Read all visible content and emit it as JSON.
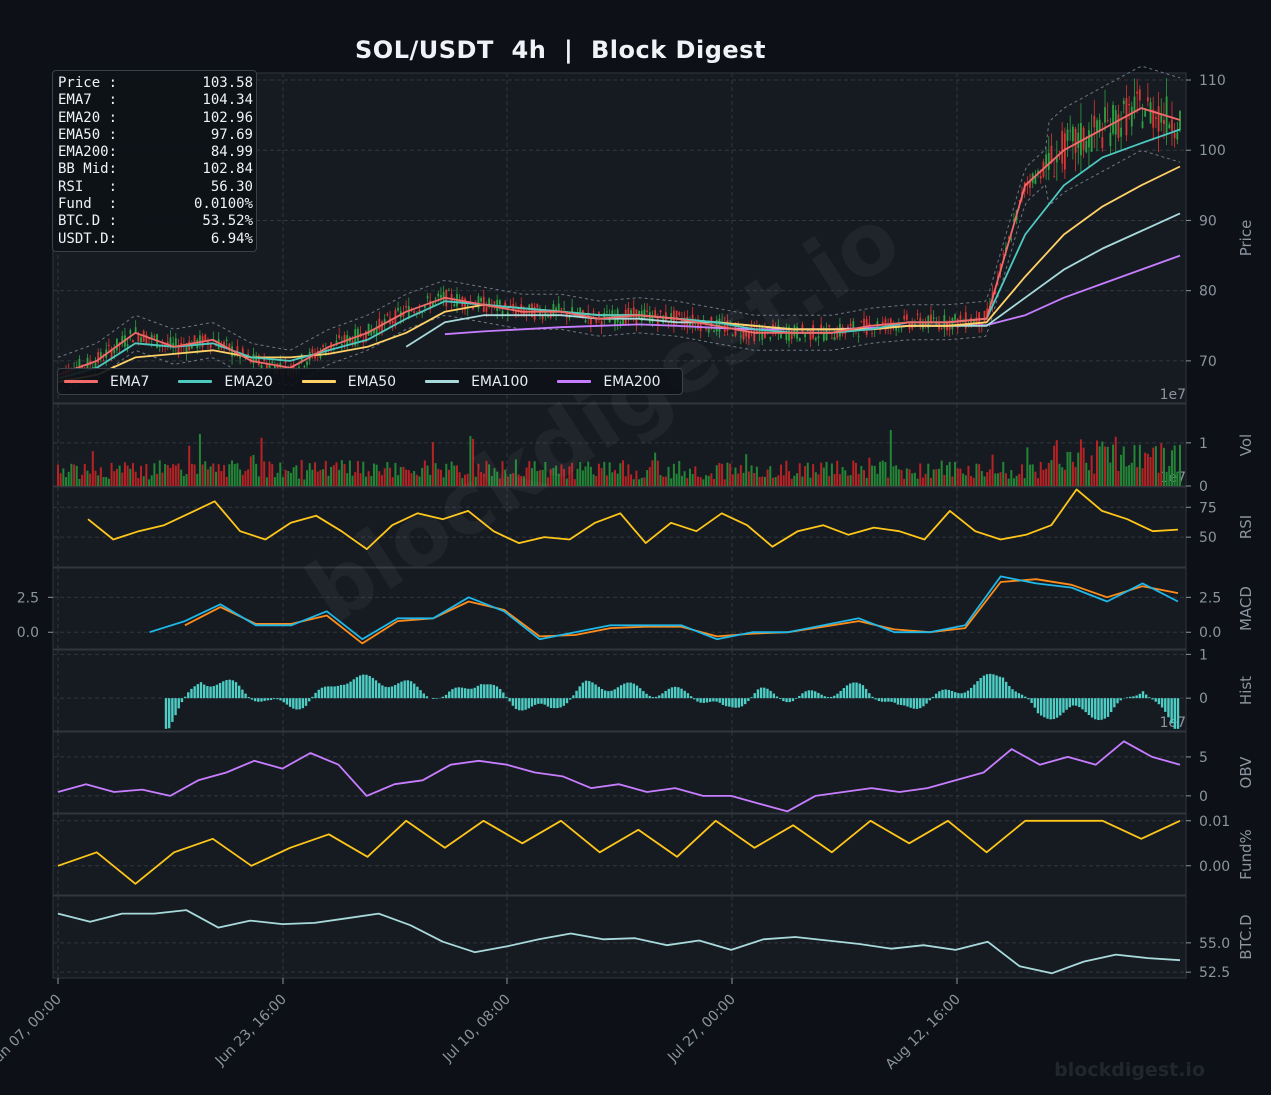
{
  "title": "SOL/USDT  4h  |  Block Digest",
  "brand": "blockdigest.io",
  "watermark": "blockdigest.io",
  "info_box": [
    {
      "label": "Price :",
      "value": "103.58"
    },
    {
      "label": "EMA7  :",
      "value": "104.34"
    },
    {
      "label": "EMA20 :",
      "value": "102.96"
    },
    {
      "label": "EMA50 :",
      "value": "97.69"
    },
    {
      "label": "EMA200:",
      "value": "84.99"
    },
    {
      "label": "BB Mid:",
      "value": "102.84"
    },
    {
      "label": "RSI   :",
      "value": "56.30"
    },
    {
      "label": "Fund  :",
      "value": "0.0100%"
    },
    {
      "label": "BTC.D :",
      "value": "53.52%"
    },
    {
      "label": "USDT.D:",
      "value": "6.94%"
    }
  ],
  "legend": [
    {
      "name": "EMA7",
      "color": "#f26b6b"
    },
    {
      "name": "EMA20",
      "color": "#4ec9c0"
    },
    {
      "name": "EMA50",
      "color": "#ffd166"
    },
    {
      "name": "EMA100",
      "color": "#a8dadc"
    },
    {
      "name": "EMA200",
      "color": "#c77dff"
    }
  ],
  "chart_data": {
    "type": "line",
    "x_ticks": [
      "Jun 07, 00:00",
      "Jun 23, 16:00",
      "Jul 10, 08:00",
      "Jul 27, 00:00",
      "Aug 12, 16:00"
    ],
    "panels": [
      {
        "id": "price",
        "ylabel": "Price",
        "ylim": [
          64,
          111
        ],
        "yticks": [
          70,
          80,
          90,
          100,
          110
        ],
        "ytick_labels": [
          "70",
          "80",
          "90",
          "100",
          "110"
        ],
        "offset_label": "1e7",
        "series": [
          {
            "name": "EMA7",
            "color": "#f26b6b",
            "values": [
              68,
              70,
              74,
              72,
              73,
              70,
              69,
              72,
              74,
              77,
              79,
              78,
              77,
              77,
              76,
              76.5,
              76,
              75,
              74,
              74,
              74,
              75,
              75.5,
              75.5,
              76,
              95,
              100,
              103,
              106,
              104.3
            ]
          },
          {
            "name": "EMA20",
            "color": "#4ec9c0",
            "values": [
              67.5,
              69,
              72.5,
              72,
              72.5,
              70.5,
              70,
              71.5,
              73,
              76,
              78.5,
              78,
              77.5,
              77,
              76.5,
              76.5,
              76,
              75.5,
              74.5,
              74,
              74,
              74.5,
              75.5,
              75.5,
              76,
              88,
              95,
              99,
              101,
              102.96
            ]
          },
          {
            "name": "EMA50",
            "color": "#ffd166",
            "values": [
              67,
              68,
              70.5,
              71,
              71.5,
              70.5,
              70.5,
              71,
              72,
              74,
              77,
              78,
              77.5,
              77,
              76.5,
              76.5,
              76,
              75.5,
              75,
              74.5,
              74.5,
              74.5,
              75,
              75,
              75.5,
              82,
              88,
              92,
              95,
              97.69
            ]
          },
          {
            "name": "EMA100",
            "color": "#a8dadc",
            "values": [
              null,
              null,
              null,
              null,
              null,
              null,
              null,
              null,
              null,
              72,
              75.5,
              76.5,
              76.5,
              76.5,
              76,
              76,
              75.5,
              75.5,
              75,
              74.5,
              74.5,
              74.5,
              75,
              75,
              75,
              79,
              83,
              86,
              88.5,
              91
            ]
          },
          {
            "name": "EMA200",
            "color": "#c77dff",
            "values": [
              null,
              null,
              null,
              null,
              null,
              null,
              null,
              null,
              null,
              null,
              73.8,
              74.2,
              74.5,
              74.8,
              75,
              75.2,
              75,
              74.7,
              74.5,
              74.5,
              74.5,
              74.7,
              75,
              75,
              75.1,
              76.5,
              79,
              81,
              83,
              84.99
            ]
          }
        ]
      },
      {
        "id": "vol",
        "ylabel": "Vol",
        "ylim": [
          0,
          1.9
        ],
        "yticks": [
          0,
          1
        ],
        "ytick_labels": [
          "0",
          "1"
        ],
        "offset_label": "1e7"
      },
      {
        "id": "rsi",
        "ylabel": "RSI",
        "ylim": [
          25,
          92
        ],
        "yticks": [
          50,
          75
        ],
        "ytick_labels": [
          "50",
          "75"
        ],
        "series": [
          {
            "name": "RSI",
            "color": "#ffc61a",
            "values": [
              65,
              48,
              55,
              60,
              70,
              80,
              55,
              48,
              62,
              68,
              55,
              40,
              60,
              70,
              65,
              72,
              55,
              45,
              50,
              48,
              62,
              70,
              45,
              62,
              55,
              70,
              60,
              42,
              55,
              60,
              52,
              58,
              55,
              48,
              72,
              55,
              48,
              52,
              60,
              90,
              72,
              65,
              55,
              56.3
            ]
          }
        ]
      },
      {
        "id": "macd",
        "ylabel": "MACD",
        "ylim": [
          -1.2,
          4.6
        ],
        "yticks": [
          0,
          2.5
        ],
        "ytick_labels": [
          "0.0",
          "2.5"
        ],
        "left_ticks": true,
        "series": [
          {
            "name": "MACD",
            "color": "#1fb8e8",
            "values": [
              null,
              0,
              0.8,
              2,
              0.5,
              0.5,
              1.5,
              -0.5,
              1,
              1,
              2.5,
              1.5,
              -0.5,
              0,
              0.5,
              0.5,
              0.5,
              -0.5,
              0,
              0,
              0.5,
              1,
              0,
              0,
              0.5,
              4,
              3.5,
              3.2,
              2.2,
              3.5,
              2.2
            ]
          },
          {
            "name": "Signal",
            "color": "#ff8c1a",
            "values": [
              null,
              null,
              0.5,
              1.8,
              0.6,
              0.6,
              1.2,
              -0.8,
              0.8,
              1,
              2.2,
              1.6,
              -0.3,
              -0.2,
              0.3,
              0.4,
              0.4,
              -0.3,
              -0.1,
              0,
              0.4,
              0.8,
              0.2,
              0,
              0.3,
              3.6,
              3.8,
              3.4,
              2.5,
              3.3,
              2.8
            ]
          }
        ]
      },
      {
        "id": "hist",
        "ylabel": "Hist",
        "ylim": [
          -0.75,
          1.1
        ],
        "yticks": [
          0,
          1
        ],
        "ytick_labels": [
          "0",
          "1"
        ],
        "offset_label": "1e7"
      },
      {
        "id": "obv",
        "ylabel": "OBV",
        "ylim": [
          -2.2,
          8.2
        ],
        "yticks": [
          0,
          5
        ],
        "ytick_labels": [
          "0",
          "5"
        ],
        "series": [
          {
            "name": "OBV",
            "color": "#c77dff",
            "values": [
              0.5,
              1.5,
              0.5,
              0.8,
              0,
              2,
              3,
              4.5,
              3.5,
              5.5,
              4,
              0,
              1.5,
              2,
              4,
              4.5,
              4,
              3,
              2.5,
              1,
              1.5,
              0.5,
              1,
              0,
              0,
              -1,
              -2,
              0,
              0.5,
              1,
              0.5,
              1,
              2,
              3,
              6,
              4,
              5,
              4,
              7,
              5,
              4
            ]
          }
        ]
      },
      {
        "id": "fund",
        "ylabel": "Fund%",
        "ylim": [
          -0.0065,
          0.0115
        ],
        "yticks": [
          0,
          0.01
        ],
        "ytick_labels": [
          "0.00",
          "0.01"
        ],
        "series": [
          {
            "name": "Fund",
            "color": "#ffc61a",
            "values": [
              0,
              0.003,
              -0.004,
              0.003,
              0.006,
              0,
              0.004,
              0.007,
              0.002,
              0.01,
              0.004,
              0.01,
              0.005,
              0.01,
              0.003,
              0.008,
              0.002,
              0.01,
              0.004,
              0.009,
              0.003,
              0.01,
              0.005,
              0.01,
              0.003,
              0.01,
              0.01,
              0.01,
              0.006,
              0.01
            ]
          }
        ]
      },
      {
        "id": "btcd",
        "ylabel": "BTC.D",
        "ylim": [
          52,
          59
        ],
        "yticks": [
          52.5,
          55
        ],
        "ytick_labels": [
          "52.5",
          "55.0"
        ],
        "series": [
          {
            "name": "BTC.D",
            "color": "#a8dadc",
            "values": [
              57.5,
              56.8,
              57.5,
              57.5,
              57.8,
              56.3,
              56.9,
              56.6,
              56.7,
              57.1,
              57.5,
              56.5,
              55.1,
              54.2,
              54.7,
              55.3,
              55.8,
              55.3,
              55.4,
              54.8,
              55.2,
              54.4,
              55.3,
              55.5,
              55.2,
              54.9,
              54.5,
              54.8,
              54.4,
              55.1,
              53.0,
              52.4,
              53.4,
              54.0,
              53.7,
              53.52
            ]
          }
        ]
      }
    ]
  }
}
